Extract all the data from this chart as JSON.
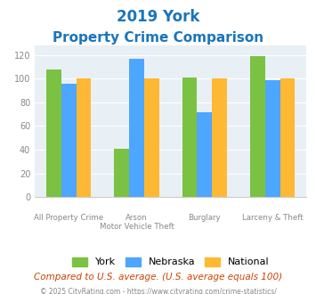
{
  "title_line1": "2019 York",
  "title_line2": "Property Crime Comparison",
  "cat_labels_line1": [
    "All Property Crime",
    "Arson",
    "Burglary",
    "Larceny & Theft"
  ],
  "cat_labels_line2": [
    "",
    "Motor Vehicle Theft",
    "",
    ""
  ],
  "york": [
    108,
    41,
    101,
    119
  ],
  "nebraska": [
    96,
    117,
    72,
    99
  ],
  "national": [
    100,
    100,
    100,
    100
  ],
  "york_color": "#7bc143",
  "nebraska_color": "#4da6ff",
  "national_color": "#ffb833",
  "bg_color": "#e8f0f5",
  "title_color": "#1a75bb",
  "tick_color": "#888888",
  "xlabel_color": "#888888",
  "legend_labels": [
    "York",
    "Nebraska",
    "National"
  ],
  "note_text": "Compared to U.S. average. (U.S. average equals 100)",
  "copyright_text": "© 2025 CityRating.com - https://www.cityrating.com/crime-statistics/",
  "ylim": [
    0,
    128
  ],
  "yticks": [
    0,
    20,
    40,
    60,
    80,
    100,
    120
  ]
}
